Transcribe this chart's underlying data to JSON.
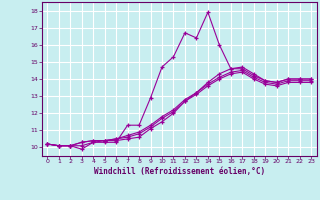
{
  "xlabel": "Windchill (Refroidissement éolien,°C)",
  "bg_color": "#c8eef0",
  "grid_color": "#ffffff",
  "line_color": "#990099",
  "xlim": [
    -0.5,
    23.5
  ],
  "ylim": [
    9.5,
    18.5
  ],
  "xticks": [
    0,
    1,
    2,
    3,
    4,
    5,
    6,
    7,
    8,
    9,
    10,
    11,
    12,
    13,
    14,
    15,
    16,
    17,
    18,
    19,
    20,
    21,
    22,
    23
  ],
  "yticks": [
    10,
    11,
    12,
    13,
    14,
    15,
    16,
    17,
    18
  ],
  "line1_x": [
    0,
    1,
    2,
    3,
    4,
    5,
    6,
    7,
    8,
    9,
    10,
    11,
    12,
    13,
    14,
    15,
    16,
    17,
    18,
    19,
    20,
    21,
    22,
    23
  ],
  "line1_y": [
    10.2,
    10.1,
    10.1,
    9.9,
    10.3,
    10.3,
    10.3,
    11.3,
    11.3,
    12.9,
    14.7,
    15.3,
    16.7,
    16.4,
    17.9,
    16.0,
    14.6,
    14.7,
    14.3,
    13.9,
    13.8,
    14.0,
    14.0,
    14.0
  ],
  "line2_x": [
    0,
    1,
    2,
    3,
    4,
    5,
    6,
    7,
    8,
    9,
    10,
    11,
    12,
    13,
    14,
    15,
    16,
    17,
    18,
    19,
    20,
    21,
    22,
    23
  ],
  "line2_y": [
    10.2,
    10.1,
    10.1,
    10.1,
    10.3,
    10.4,
    10.4,
    10.5,
    10.6,
    11.1,
    11.5,
    12.0,
    12.7,
    13.2,
    13.8,
    14.3,
    14.6,
    14.6,
    14.2,
    13.9,
    13.8,
    14.0,
    14.0,
    14.0
  ],
  "line3_x": [
    0,
    1,
    2,
    3,
    4,
    5,
    6,
    7,
    8,
    9,
    10,
    11,
    12,
    13,
    14,
    15,
    16,
    17,
    18,
    19,
    20,
    21,
    22,
    23
  ],
  "line3_y": [
    10.2,
    10.1,
    10.1,
    10.3,
    10.4,
    10.4,
    10.5,
    10.7,
    10.9,
    11.3,
    11.8,
    12.2,
    12.8,
    13.2,
    13.7,
    14.1,
    14.4,
    14.5,
    14.1,
    13.8,
    13.7,
    13.9,
    13.9,
    13.9
  ],
  "line4_x": [
    0,
    1,
    2,
    3,
    4,
    5,
    6,
    7,
    8,
    9,
    10,
    11,
    12,
    13,
    14,
    15,
    16,
    17,
    18,
    19,
    20,
    21,
    22,
    23
  ],
  "line4_y": [
    10.2,
    10.1,
    10.1,
    10.3,
    10.4,
    10.4,
    10.5,
    10.6,
    10.8,
    11.2,
    11.7,
    12.1,
    12.7,
    13.1,
    13.6,
    14.0,
    14.3,
    14.4,
    14.0,
    13.7,
    13.6,
    13.8,
    13.8,
    13.8
  ]
}
